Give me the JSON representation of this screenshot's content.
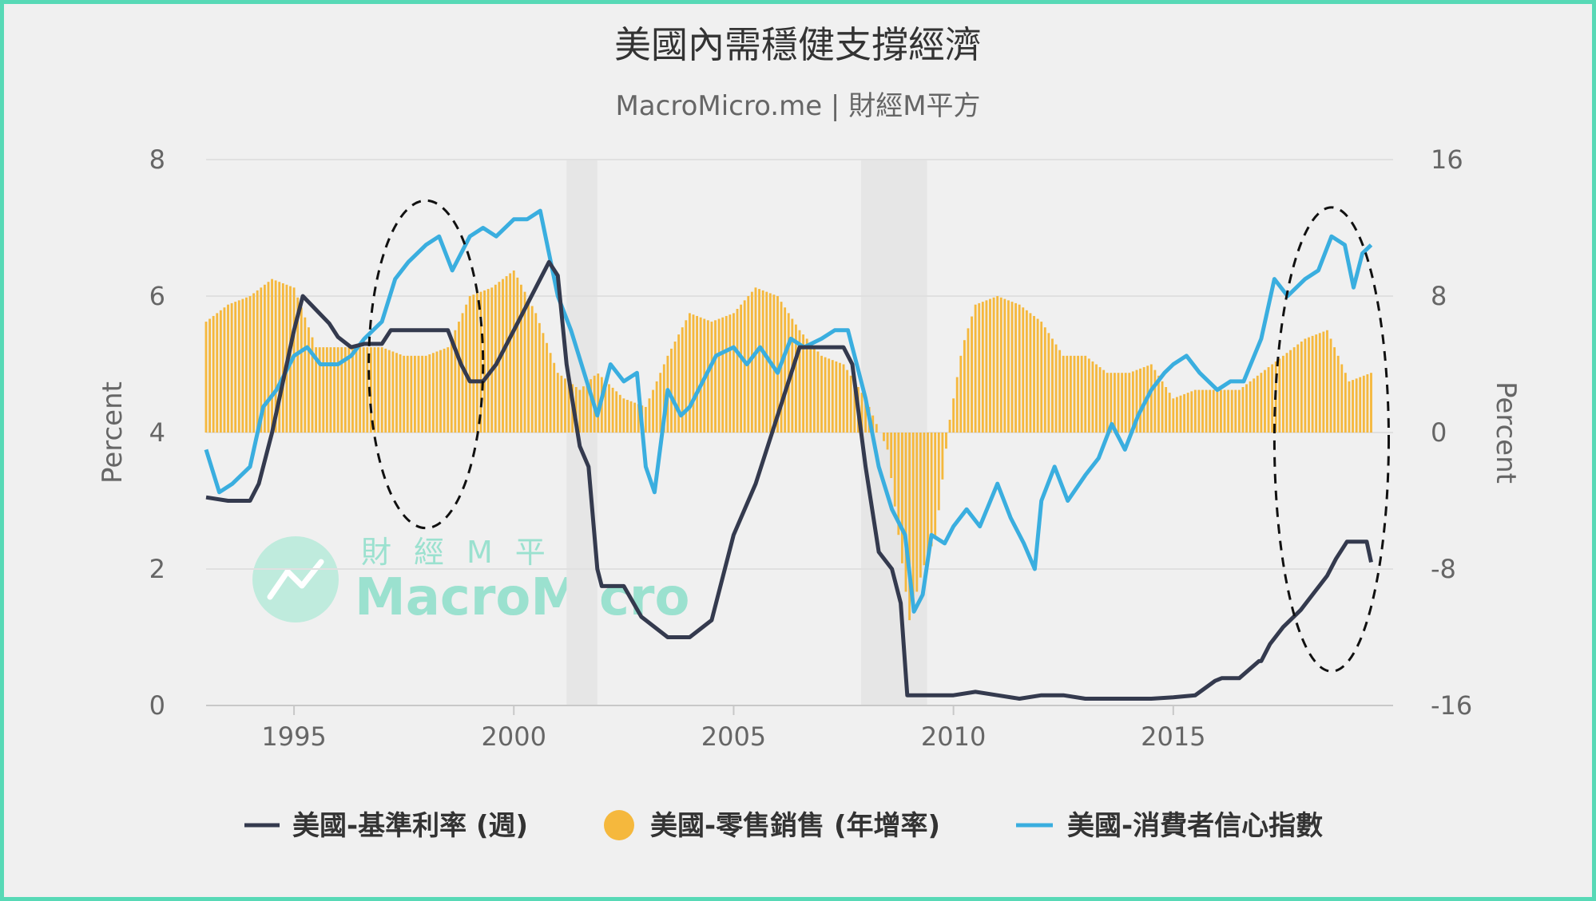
{
  "chart_data": {
    "type": "bar+line",
    "title": "美國內需穩健支撐經濟",
    "subtitle": "MacroMicro.me | 財經M平方",
    "watermark": {
      "cn": "財經M平方",
      "en": "MacroMicro"
    },
    "x_ticks": [
      "1995",
      "2000",
      "2005",
      "2010",
      "2015"
    ],
    "x_range": [
      1993.0,
      2020.0
    ],
    "y_left": {
      "label": "Percent",
      "range": [
        0,
        8
      ],
      "ticks": [
        "0",
        "2",
        "4",
        "6",
        "8"
      ]
    },
    "y_right": {
      "label": "Percent",
      "range": [
        -16,
        16
      ],
      "ticks": [
        "-16",
        "-8",
        "0",
        "8",
        "16"
      ]
    },
    "recessions": [
      [
        2001.2,
        2001.9
      ],
      [
        2007.9,
        2009.4
      ]
    ],
    "annotations": [
      {
        "type": "ellipse",
        "x_center": 1998.0,
        "y_center": 5.0,
        "x_radius": 1.3,
        "y_radius": 2.4
      },
      {
        "type": "ellipse",
        "x_center": 2018.6,
        "y_center": 3.9,
        "x_radius": 1.3,
        "y_radius": 3.4
      }
    ],
    "grid": true,
    "legend_position": "bottom",
    "series": [
      {
        "name": "美國-基準利率 (週)",
        "type": "line",
        "axis": "left",
        "color": "#343A4E",
        "x": [
          1993.0,
          1993.5,
          1994.0,
          1994.2,
          1994.5,
          1994.8,
          1995.0,
          1995.2,
          1995.5,
          1995.8,
          1996.0,
          1996.3,
          1996.6,
          1997.0,
          1997.2,
          1997.5,
          1998.0,
          1998.5,
          1998.8,
          1999.0,
          1999.3,
          1999.6,
          2000.0,
          2000.4,
          2000.8,
          2001.0,
          2001.2,
          2001.5,
          2001.7,
          2001.9,
          2002.0,
          2002.5,
          2002.9,
          2003.0,
          2003.5,
          2003.8,
          2004.0,
          2004.5,
          2004.8,
          2005.0,
          2005.5,
          2006.0,
          2006.5,
          2007.0,
          2007.5,
          2007.7,
          2008.0,
          2008.3,
          2008.6,
          2008.8,
          2008.95,
          2009.2,
          2009.5,
          2010.0,
          2010.5,
          2011.0,
          2011.5,
          2012.0,
          2012.5,
          2013.0,
          2013.5,
          2014.0,
          2014.5,
          2015.0,
          2015.5,
          2015.95,
          2016.1,
          2016.5,
          2016.95,
          2017.0,
          2017.2,
          2017.5,
          2017.9,
          2018.2,
          2018.5,
          2018.7,
          2018.95,
          2019.2,
          2019.4,
          2019.5
        ],
        "y": [
          3.05,
          3.0,
          3.0,
          3.25,
          4.0,
          4.9,
          5.5,
          6.0,
          5.8,
          5.6,
          5.4,
          5.25,
          5.3,
          5.3,
          5.5,
          5.5,
          5.5,
          5.5,
          5.0,
          4.75,
          4.75,
          5.0,
          5.5,
          6.0,
          6.5,
          6.3,
          5.0,
          3.8,
          3.5,
          2.0,
          1.75,
          1.75,
          1.3,
          1.25,
          1.0,
          1.0,
          1.0,
          1.25,
          2.0,
          2.5,
          3.25,
          4.25,
          5.25,
          5.25,
          5.25,
          5.0,
          3.5,
          2.25,
          2.0,
          1.5,
          0.15,
          0.15,
          0.15,
          0.15,
          0.2,
          0.15,
          0.1,
          0.15,
          0.15,
          0.1,
          0.1,
          0.1,
          0.1,
          0.12,
          0.15,
          0.36,
          0.4,
          0.4,
          0.65,
          0.65,
          0.9,
          1.15,
          1.4,
          1.65,
          1.9,
          2.15,
          2.4,
          2.4,
          2.4,
          2.1
        ]
      },
      {
        "name": "美國-零售銷售 (年增率)",
        "type": "bar",
        "axis": "right",
        "color": "#F5B83D",
        "x": [
          1993.0,
          1993.5,
          1994.0,
          1994.5,
          1995.0,
          1995.5,
          1996.0,
          1996.5,
          1997.0,
          1997.5,
          1998.0,
          1998.5,
          1999.0,
          1999.5,
          2000.0,
          2000.5,
          2001.0,
          2001.5,
          2001.9,
          2002.5,
          2003.0,
          2003.5,
          2004.0,
          2004.5,
          2005.0,
          2005.5,
          2006.0,
          2006.5,
          2007.0,
          2007.5,
          2008.0,
          2008.5,
          2008.8,
          2009.0,
          2009.3,
          2009.6,
          2009.9,
          2010.2,
          2010.5,
          2011.0,
          2011.5,
          2012.0,
          2012.5,
          2013.0,
          2013.5,
          2014.0,
          2014.5,
          2015.0,
          2015.5,
          2016.0,
          2016.5,
          2017.0,
          2017.5,
          2018.0,
          2018.5,
          2019.0,
          2019.5
        ],
        "y": [
          6.5,
          7.5,
          8.0,
          9.0,
          8.5,
          5.0,
          5.0,
          5.0,
          5.0,
          4.5,
          4.5,
          5.0,
          8.0,
          8.5,
          9.5,
          7.0,
          3.5,
          2.5,
          3.5,
          2.0,
          1.5,
          4.5,
          7.0,
          6.5,
          7.0,
          8.5,
          8.0,
          6.0,
          4.5,
          4.0,
          2.0,
          -1.0,
          -7.0,
          -11.0,
          -8.0,
          -6.0,
          0.5,
          5.0,
          7.5,
          8.0,
          7.5,
          6.5,
          4.5,
          4.5,
          3.5,
          3.5,
          4.0,
          2.0,
          2.5,
          2.5,
          2.5,
          3.5,
          4.5,
          5.5,
          6.0,
          3.0,
          3.5
        ]
      },
      {
        "name": "美國-消費者信心指數",
        "type": "line",
        "axis": "right",
        "color": "#3AAEDF",
        "x": [
          1993.0,
          1993.3,
          1993.6,
          1994.0,
          1994.3,
          1994.6,
          1995.0,
          1995.3,
          1995.6,
          1996.0,
          1996.3,
          1996.6,
          1997.0,
          1997.3,
          1997.6,
          1998.0,
          1998.3,
          1998.6,
          1999.0,
          1999.3,
          1999.6,
          2000.0,
          2000.3,
          2000.6,
          2001.0,
          2001.3,
          2001.6,
          2001.9,
          2002.2,
          2002.5,
          2002.8,
          2003.0,
          2003.2,
          2003.5,
          2003.8,
          2004.0,
          2004.3,
          2004.6,
          2005.0,
          2005.3,
          2005.6,
          2006.0,
          2006.3,
          2006.6,
          2007.0,
          2007.3,
          2007.6,
          2008.0,
          2008.3,
          2008.6,
          2008.9,
          2009.1,
          2009.3,
          2009.5,
          2009.8,
          2010.0,
          2010.3,
          2010.6,
          2011.0,
          2011.3,
          2011.6,
          2011.85,
          2012.0,
          2012.3,
          2012.6,
          2013.0,
          2013.3,
          2013.6,
          2013.9,
          2014.2,
          2014.5,
          2014.8,
          2015.0,
          2015.3,
          2015.6,
          2016.0,
          2016.3,
          2016.6,
          2017.0,
          2017.3,
          2017.6,
          2018.0,
          2018.3,
          2018.6,
          2018.9,
          2019.1,
          2019.3,
          2019.5
        ],
        "y": [
          -1.0,
          -3.5,
          -3.0,
          -2.0,
          1.5,
          2.5,
          4.5,
          5.0,
          4.0,
          4.0,
          4.5,
          5.5,
          6.5,
          9.0,
          10.0,
          11.0,
          11.5,
          9.5,
          11.5,
          12.0,
          11.5,
          12.5,
          12.5,
          13.0,
          8.0,
          6.0,
          3.5,
          1.0,
          4.0,
          3.0,
          3.5,
          -2.0,
          -3.5,
          2.5,
          1.0,
          1.5,
          3.0,
          4.5,
          5.0,
          4.0,
          5.0,
          3.5,
          5.5,
          5.0,
          5.5,
          6.0,
          6.0,
          2.0,
          -2.0,
          -4.5,
          -6.0,
          -10.5,
          -9.5,
          -6.0,
          -6.5,
          -5.5,
          -4.5,
          -5.5,
          -3.0,
          -5.0,
          -6.5,
          -8.0,
          -4.0,
          -2.0,
          -4.0,
          -2.5,
          -1.5,
          0.5,
          -1.0,
          1.0,
          2.5,
          3.5,
          4.0,
          4.5,
          3.5,
          2.5,
          3.0,
          3.0,
          5.5,
          9.0,
          8.0,
          9.0,
          9.5,
          11.5,
          11.0,
          8.5,
          10.5,
          11.0
        ]
      }
    ]
  }
}
